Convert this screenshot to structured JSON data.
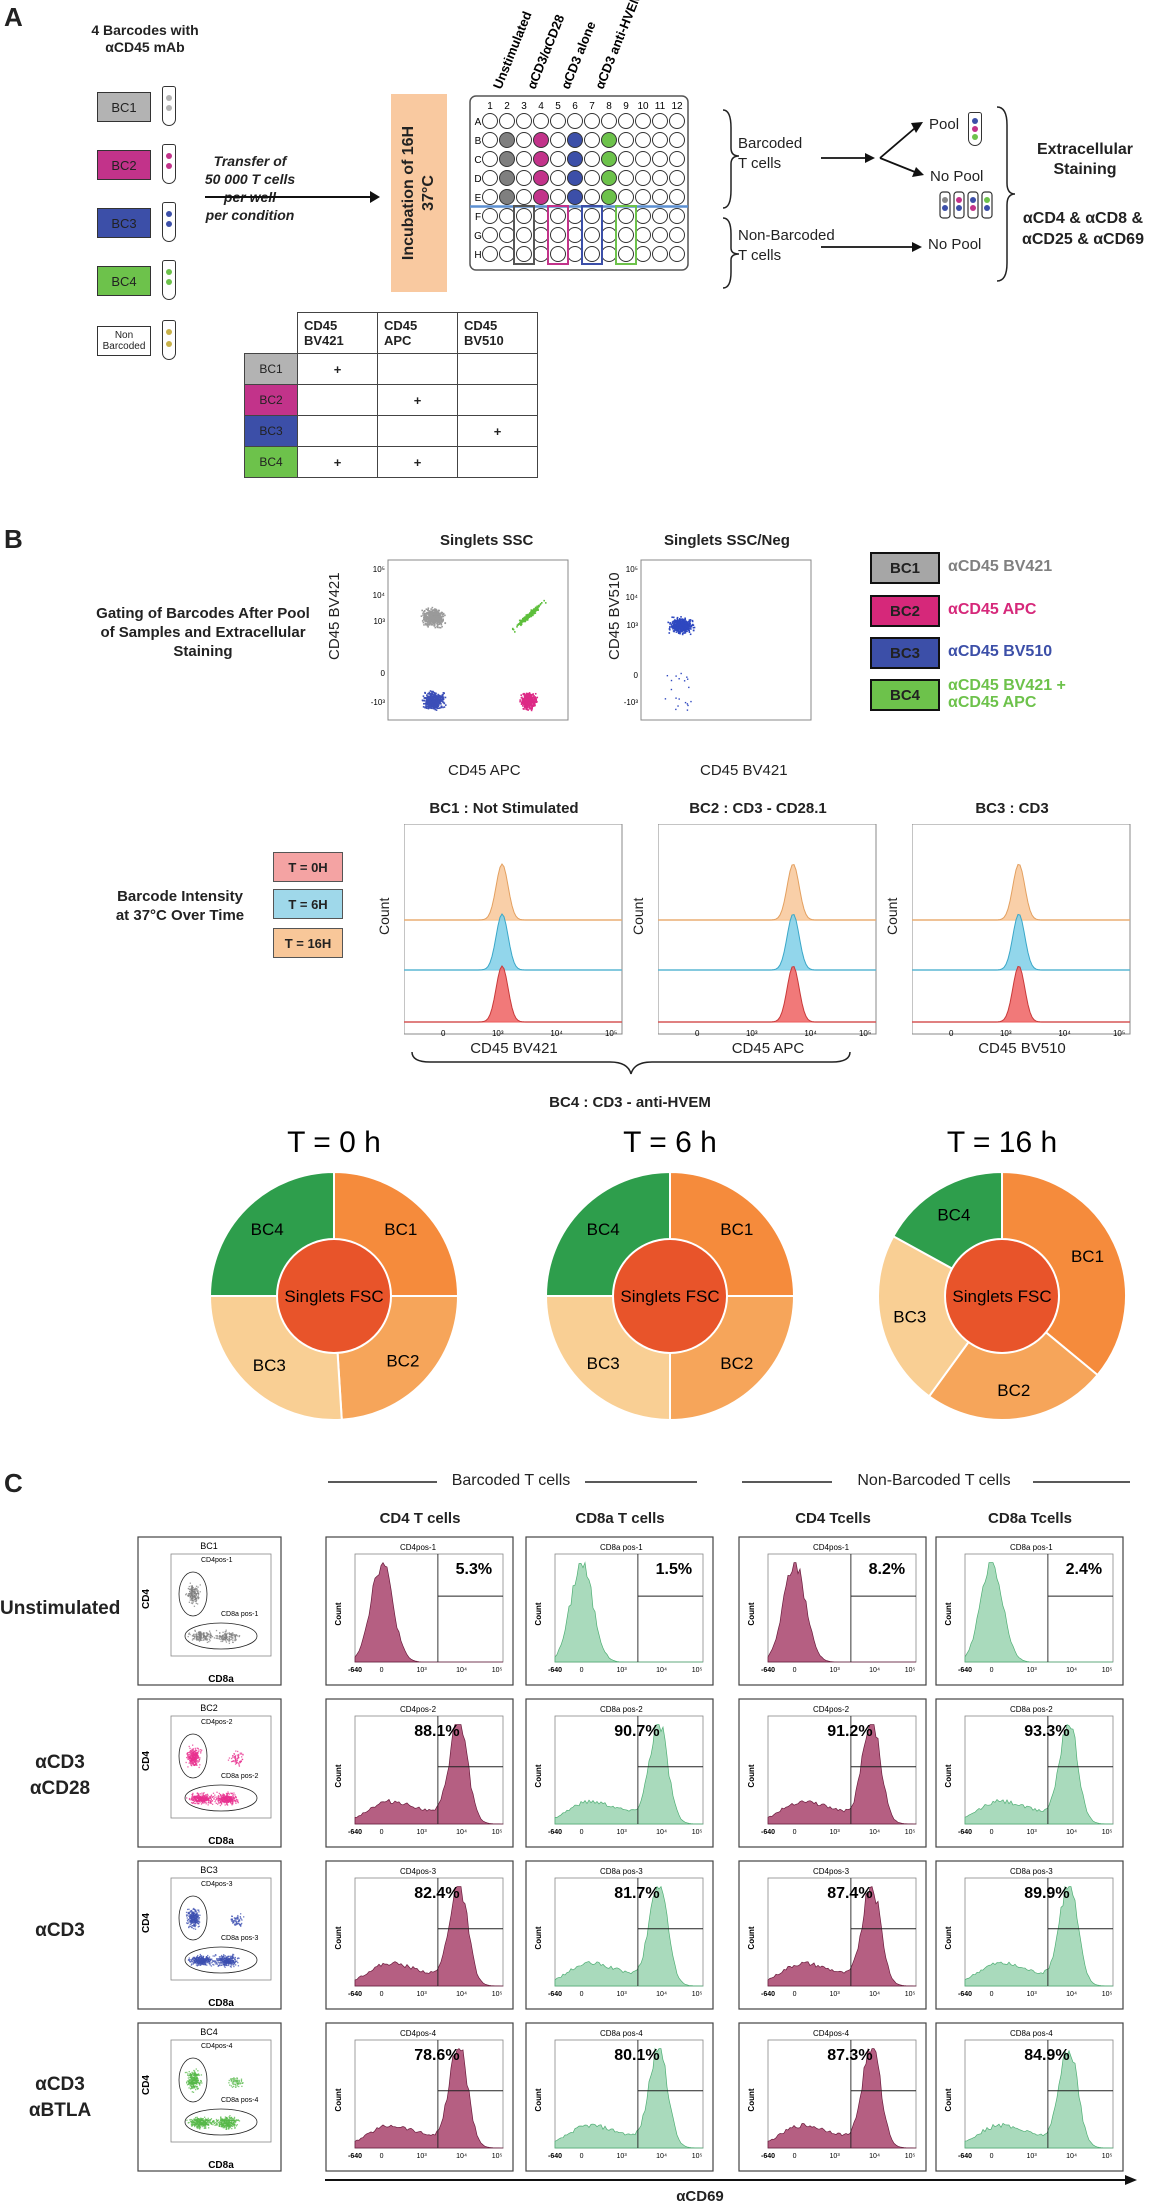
{
  "panel_a": {
    "letter": "A",
    "barcode_title": "4 Barcodes with\nαCD45 mAb",
    "barcodes": [
      {
        "label": "BC1",
        "color": "#b3b3b3"
      },
      {
        "label": "BC2",
        "color": "#c2338a"
      },
      {
        "label": "BC3",
        "color": "#3c4fa8"
      },
      {
        "label": "BC4",
        "color": "#6dc24b"
      },
      {
        "label": "Non\nBarcoded",
        "color": "#ffffff"
      }
    ],
    "transfer_text": "Transfer of\n50 000 T cells\nper well\nper condition",
    "incubation_text": "Incubation of 16H\n37°C",
    "plate_conditions": [
      "Unstimulated",
      "αCD3/αCD28",
      "αCD3 alone",
      "αCD3 anti-HVEM"
    ],
    "plate_cols": [
      "1",
      "2",
      "3",
      "4",
      "5",
      "6",
      "7",
      "8",
      "9",
      "10",
      "11",
      "12"
    ],
    "plate_rows": [
      "A",
      "B",
      "C",
      "D",
      "E",
      "F",
      "G",
      "H"
    ],
    "barcoded_label": "Barcoded\nT cells",
    "nonbarcoded_label": "Non-Barcoded\nT cells",
    "pool_label": "Pool",
    "nopool_label1": "No Pool",
    "nopool_label2": "No Pool",
    "extracellular_title": "Extracellular\nStaining",
    "extracellular_markers": "αCD4 & αCD8 &\nαCD25 & αCD69",
    "table_headers": [
      "CD45\nBV421",
      "CD45\nAPC",
      "CD45\nBV510"
    ],
    "table_rows": [
      {
        "label": "BC1",
        "color": "#b3b3b3",
        "cells": [
          "+",
          "",
          ""
        ]
      },
      {
        "label": "BC2",
        "color": "#c2338a",
        "cells": [
          "",
          "+",
          ""
        ]
      },
      {
        "label": "BC3",
        "color": "#3c4fa8",
        "cells": [
          "",
          "",
          "+"
        ]
      },
      {
        "label": "BC4",
        "color": "#6dc24b",
        "cells": [
          "+",
          "+",
          ""
        ]
      }
    ]
  },
  "panel_b": {
    "letter": "B",
    "gating_text": "Gating of Barcodes After Pool\nof Samples and Extracellular\nStaining",
    "scatter1_title": "Singlets SSC",
    "scatter1_xlabel": "CD45 APC",
    "scatter1_ylabel": "CD45 BV421",
    "scatter2_title": "Singlets SSC/Neg",
    "scatter2_xlabel": "CD45 BV421",
    "scatter2_ylabel": "CD45 BV510",
    "legend": [
      {
        "box": "BC1",
        "text": "αCD45 BV421",
        "color": "#a6a6a6",
        "textcolor": "#808080"
      },
      {
        "box": "BC2",
        "text": "αCD45 APC",
        "color": "#d6287a",
        "textcolor": "#d6287a"
      },
      {
        "box": "BC3",
        "text": "αCD45 BV510",
        "color": "#3c4fa8",
        "textcolor": "#3c4fa8"
      },
      {
        "box": "BC4",
        "text": "αCD45 BV421 +\nαCD45 APC",
        "color": "#6dc24b",
        "textcolor": "#6dc24b"
      }
    ],
    "intensity_text": "Barcode Intensity\nat 37°C Over Time",
    "time_boxes": [
      {
        "label": "T = 0H",
        "color": "#f4a3a3"
      },
      {
        "label": "T = 6H",
        "color": "#9fd8ea"
      },
      {
        "label": "T = 16H",
        "color": "#f8c799"
      }
    ],
    "histograms": [
      {
        "title": "BC1 : Not Stimulated",
        "xlabel": "CD45 BV421",
        "ylabel": "Count"
      },
      {
        "title": "BC2 : CD3 - CD28.1",
        "xlabel": "CD45 APC",
        "ylabel": "Count"
      },
      {
        "title": "BC3 : CD3",
        "xlabel": "CD45 BV510",
        "ylabel": "Count"
      }
    ],
    "bc4_caption": "BC4 : CD3 - anti-HVEM",
    "donut_center": "Singlets FSC"
  },
  "chart_data": [
    {
      "type": "pie",
      "title": "T = 0 h",
      "categories": [
        "BC1",
        "BC2",
        "BC3",
        "BC4"
      ],
      "values": [
        25,
        24,
        26,
        25
      ],
      "colors": [
        "#f58b3c",
        "#f6a55a",
        "#f9cf94",
        "#2e9e4c"
      ]
    },
    {
      "type": "pie",
      "title": "T = 6 h",
      "categories": [
        "BC1",
        "BC2",
        "BC3",
        "BC4"
      ],
      "values": [
        25,
        25,
        25,
        25
      ],
      "colors": [
        "#f58b3c",
        "#f6a55a",
        "#f9cf94",
        "#2e9e4c"
      ]
    },
    {
      "type": "pie",
      "title": "T = 16 h",
      "categories": [
        "BC1",
        "BC2",
        "BC3",
        "BC4"
      ],
      "values": [
        36,
        24,
        23,
        17
      ],
      "colors": [
        "#f58b3c",
        "#f6a55a",
        "#f9cf94",
        "#2e9e4c"
      ]
    }
  ],
  "panel_c": {
    "letter": "C",
    "barcoded_header": "Barcoded T cells",
    "nonbarcoded_header": "Non-Barcoded T cells",
    "col_headers": [
      "CD4 T  cells",
      "CD8a T  cells",
      "CD4 Tcells",
      "CD8a Tcells"
    ],
    "x_axis_label": "αCD69",
    "rows": [
      {
        "label": "Unstimulated",
        "bc": "BC1",
        "color": "#7f7f7f",
        "gates": [
          "CD4pos-1",
          "CD8a pos-1"
        ],
        "values": [
          "5.3%",
          "1.5%",
          "8.2%",
          "2.4%"
        ]
      },
      {
        "label": "αCD3\nαCD28",
        "bc": "BC2",
        "color": "#e8308f",
        "gates": [
          "CD4pos-2",
          "CD8a pos-2"
        ],
        "values": [
          "88.1%",
          "90.7%",
          "91.2%",
          "93.3%"
        ]
      },
      {
        "label": "αCD3",
        "bc": "BC3",
        "color": "#3c4fb0",
        "gates": [
          "CD4pos-3",
          "CD8a pos-3"
        ],
        "values": [
          "82.4%",
          "81.7%",
          "87.4%",
          "89.9%"
        ]
      },
      {
        "label": "αCD3\nαBTLA",
        "bc": "BC4",
        "color": "#55b848",
        "gates": [
          "CD4pos-4",
          "CD8a pos-4"
        ],
        "values": [
          "78.6%",
          "80.1%",
          "87.3%",
          "84.9%"
        ]
      }
    ],
    "dot_xlabel": "CD8a",
    "dot_ylabel": "CD4",
    "hist_ylabel": "Count"
  }
}
